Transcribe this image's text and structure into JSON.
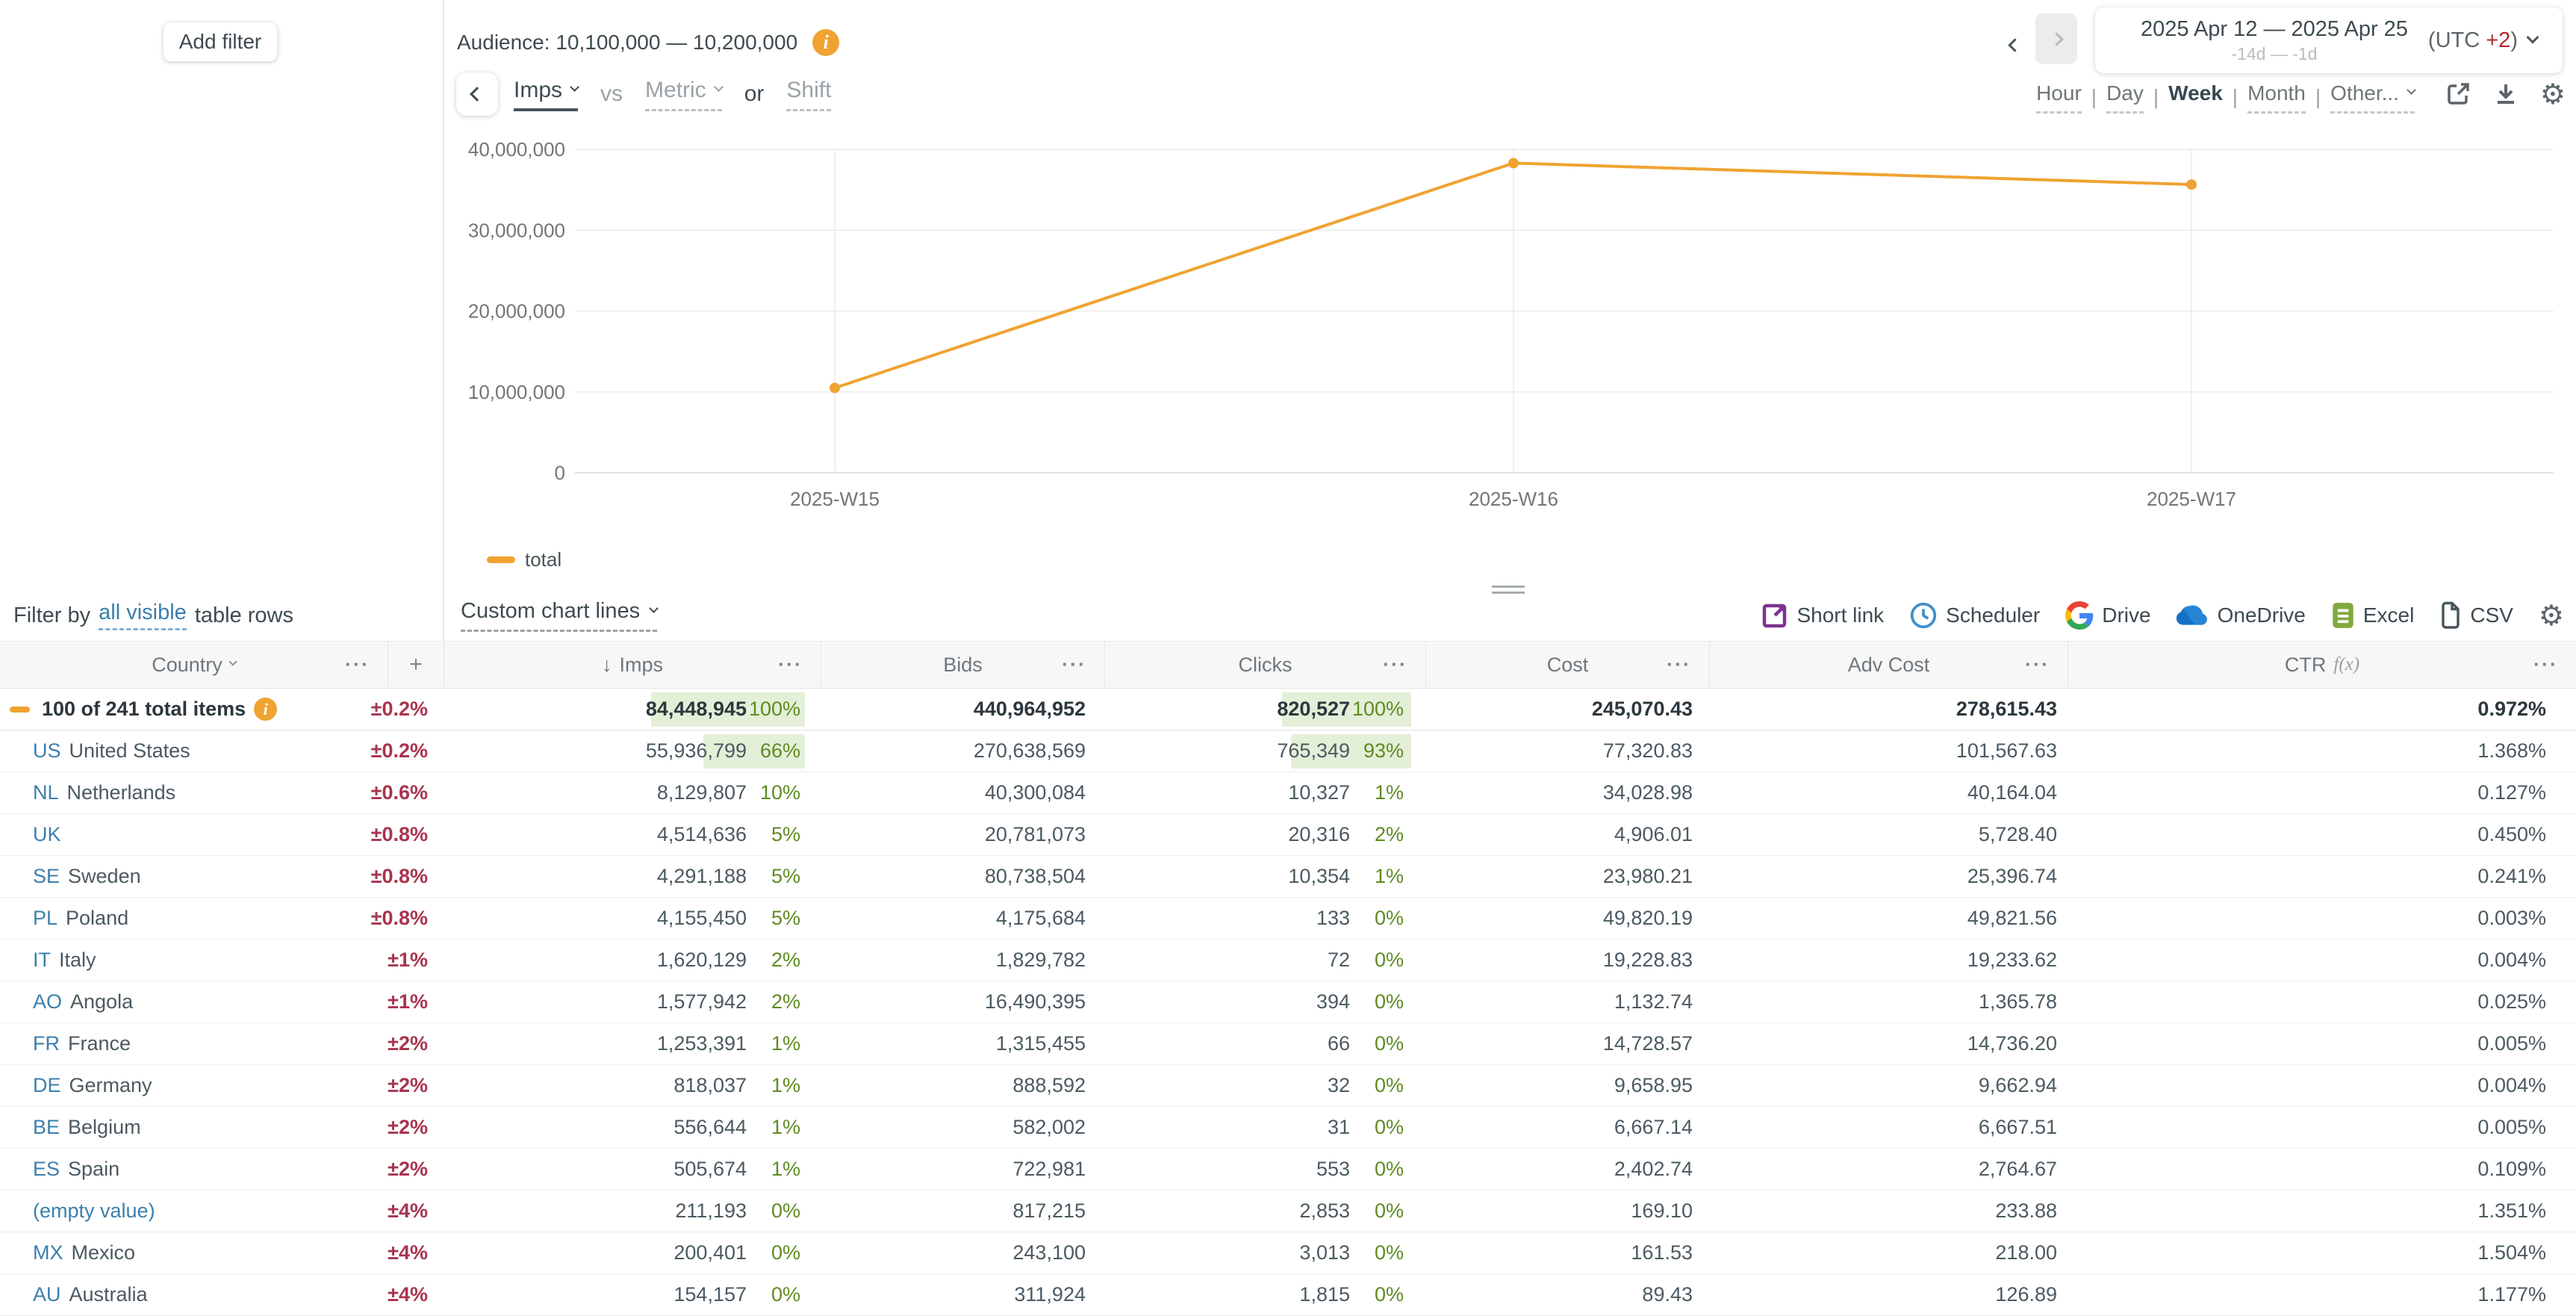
{
  "header": {
    "add_filter": "Add filter",
    "audience_label": "Audience: 10,100,000 — 10,200,000",
    "date_range": "2025 Apr 12 — 2025 Apr 25",
    "date_relative": "-14d — -1d",
    "utc_prefix": "(UTC",
    "utc_offset": "+2",
    "utc_suffix": ")",
    "granularity": [
      "Hour",
      "Day",
      "Week",
      "Month",
      "Other..."
    ],
    "granularity_active": "Week"
  },
  "metric_bar": {
    "metric": "Imps",
    "vs": "vs",
    "metric_placeholder": "Metric",
    "or": "or",
    "shift": "Shift"
  },
  "chart_data": {
    "type": "line",
    "title": "",
    "x": [
      "2025-W15",
      "2025-W16",
      "2025-W17"
    ],
    "series": [
      {
        "name": "total",
        "color": "#f0a332",
        "values": [
          10500000,
          38300000,
          35650000
        ]
      }
    ],
    "ylim": [
      0,
      40000000
    ],
    "y_ticks": [
      0,
      10000000,
      20000000,
      30000000,
      40000000
    ],
    "y_tick_labels": [
      "0",
      "10,000,000",
      "20,000,000",
      "30,000,000",
      "40,000,000"
    ],
    "grid": true,
    "legend": [
      "total"
    ],
    "legend_position": "bottom-left"
  },
  "toolbar": {
    "filter_by_prefix": "Filter by",
    "filter_by_link": "all visible",
    "filter_by_suffix": "table rows",
    "custom_chart_lines": "Custom chart lines",
    "exports": [
      {
        "label": "Short link",
        "icon": "short-link-icon",
        "color": "#7d3290"
      },
      {
        "label": "Scheduler",
        "icon": "scheduler-icon",
        "color": "#3e8fcc"
      },
      {
        "label": "Drive",
        "icon": "google-drive-icon",
        "color": "multicolor"
      },
      {
        "label": "OneDrive",
        "icon": "onedrive-icon",
        "color": "#1271c4"
      },
      {
        "label": "Excel",
        "icon": "excel-icon",
        "color": "#82a83c"
      },
      {
        "label": "CSV",
        "icon": "csv-icon",
        "color": "#46555c"
      }
    ]
  },
  "table": {
    "columns": [
      "Country",
      "+",
      "Imps",
      "Bids",
      "Clicks",
      "Cost",
      "Adv Cost",
      "CTR"
    ],
    "ctr_fx": "f(x)",
    "sort_icon": "↓",
    "add_column": "+",
    "more_icon": "···",
    "rows": [
      {
        "type": "total",
        "label": "100 of 241 total items",
        "has_info": true,
        "err": "±0.2%",
        "imps": "84,448,945",
        "imps_pct": "100%",
        "imps_pct_n": 100,
        "bids": "440,964,952",
        "clicks": "820,527",
        "clicks_pct": "100%",
        "clicks_pct_n": 100,
        "cost": "245,070.43",
        "adv_cost": "278,615.43",
        "ctr": "0.972%"
      },
      {
        "type": "country",
        "code": "US",
        "name": "United States",
        "err": "±0.2%",
        "imps": "55,936,799",
        "imps_pct": "66%",
        "imps_pct_n": 66,
        "bids": "270,638,569",
        "clicks": "765,349",
        "clicks_pct": "93%",
        "clicks_pct_n": 93,
        "cost": "77,320.83",
        "adv_cost": "101,567.63",
        "ctr": "1.368%"
      },
      {
        "type": "country",
        "code": "NL",
        "name": "Netherlands",
        "err": "±0.6%",
        "imps": "8,129,807",
        "imps_pct": "10%",
        "imps_pct_n": 10,
        "bids": "40,300,084",
        "clicks": "10,327",
        "clicks_pct": "1%",
        "clicks_pct_n": 1,
        "cost": "34,028.98",
        "adv_cost": "40,164.04",
        "ctr": "0.127%"
      },
      {
        "type": "country",
        "code": "UK",
        "name": "",
        "err": "±0.8%",
        "imps": "4,514,636",
        "imps_pct": "5%",
        "imps_pct_n": 5,
        "bids": "20,781,073",
        "clicks": "20,316",
        "clicks_pct": "2%",
        "clicks_pct_n": 2,
        "cost": "4,906.01",
        "adv_cost": "5,728.40",
        "ctr": "0.450%"
      },
      {
        "type": "country",
        "code": "SE",
        "name": "Sweden",
        "err": "±0.8%",
        "imps": "4,291,188",
        "imps_pct": "5%",
        "imps_pct_n": 5,
        "bids": "80,738,504",
        "clicks": "10,354",
        "clicks_pct": "1%",
        "clicks_pct_n": 1,
        "cost": "23,980.21",
        "adv_cost": "25,396.74",
        "ctr": "0.241%"
      },
      {
        "type": "country",
        "code": "PL",
        "name": "Poland",
        "err": "±0.8%",
        "imps": "4,155,450",
        "imps_pct": "5%",
        "imps_pct_n": 5,
        "bids": "4,175,684",
        "clicks": "133",
        "clicks_pct": "0%",
        "clicks_pct_n": 0,
        "cost": "49,820.19",
        "adv_cost": "49,821.56",
        "ctr": "0.003%"
      },
      {
        "type": "country",
        "code": "IT",
        "name": "Italy",
        "err": "±1%",
        "imps": "1,620,129",
        "imps_pct": "2%",
        "imps_pct_n": 2,
        "bids": "1,829,782",
        "clicks": "72",
        "clicks_pct": "0%",
        "clicks_pct_n": 0,
        "cost": "19,228.83",
        "adv_cost": "19,233.62",
        "ctr": "0.004%"
      },
      {
        "type": "country",
        "code": "AO",
        "name": "Angola",
        "err": "±1%",
        "imps": "1,577,942",
        "imps_pct": "2%",
        "imps_pct_n": 2,
        "bids": "16,490,395",
        "clicks": "394",
        "clicks_pct": "0%",
        "clicks_pct_n": 0,
        "cost": "1,132.74",
        "adv_cost": "1,365.78",
        "ctr": "0.025%"
      },
      {
        "type": "country",
        "code": "FR",
        "name": "France",
        "err": "±2%",
        "imps": "1,253,391",
        "imps_pct": "1%",
        "imps_pct_n": 1,
        "bids": "1,315,455",
        "clicks": "66",
        "clicks_pct": "0%",
        "clicks_pct_n": 0,
        "cost": "14,728.57",
        "adv_cost": "14,736.20",
        "ctr": "0.005%"
      },
      {
        "type": "country",
        "code": "DE",
        "name": "Germany",
        "err": "±2%",
        "imps": "818,037",
        "imps_pct": "1%",
        "imps_pct_n": 1,
        "bids": "888,592",
        "clicks": "32",
        "clicks_pct": "0%",
        "clicks_pct_n": 0,
        "cost": "9,658.95",
        "adv_cost": "9,662.94",
        "ctr": "0.004%"
      },
      {
        "type": "country",
        "code": "BE",
        "name": "Belgium",
        "err": "±2%",
        "imps": "556,644",
        "imps_pct": "1%",
        "imps_pct_n": 1,
        "bids": "582,002",
        "clicks": "31",
        "clicks_pct": "0%",
        "clicks_pct_n": 0,
        "cost": "6,667.14",
        "adv_cost": "6,667.51",
        "ctr": "0.005%"
      },
      {
        "type": "country",
        "code": "ES",
        "name": "Spain",
        "err": "±2%",
        "imps": "505,674",
        "imps_pct": "1%",
        "imps_pct_n": 1,
        "bids": "722,981",
        "clicks": "553",
        "clicks_pct": "0%",
        "clicks_pct_n": 0,
        "cost": "2,402.74",
        "adv_cost": "2,764.67",
        "ctr": "0.109%"
      },
      {
        "type": "country",
        "code": "(empty value)",
        "name": "",
        "err": "±4%",
        "imps": "211,193",
        "imps_pct": "0%",
        "imps_pct_n": 0,
        "bids": "817,215",
        "clicks": "2,853",
        "clicks_pct": "0%",
        "clicks_pct_n": 0,
        "cost": "169.10",
        "adv_cost": "233.88",
        "ctr": "1.351%"
      },
      {
        "type": "country",
        "code": "MX",
        "name": "Mexico",
        "err": "±4%",
        "imps": "200,401",
        "imps_pct": "0%",
        "imps_pct_n": 0,
        "bids": "243,100",
        "clicks": "3,013",
        "clicks_pct": "0%",
        "clicks_pct_n": 0,
        "cost": "161.53",
        "adv_cost": "218.00",
        "ctr": "1.504%"
      },
      {
        "type": "country",
        "code": "AU",
        "name": "Australia",
        "err": "±4%",
        "imps": "154,157",
        "imps_pct": "0%",
        "imps_pct_n": 0,
        "bids": "311,924",
        "clicks": "1,815",
        "clicks_pct": "0%",
        "clicks_pct_n": 0,
        "cost": "89.43",
        "adv_cost": "126.89",
        "ctr": "1.177%"
      }
    ]
  },
  "colors": {
    "accent_orange": "#f0a332",
    "error_red": "#a8344e",
    "pct_green": "#5e8b22",
    "bar_green_bg": "#e4efd8",
    "link_blue": "#3b7fad"
  }
}
